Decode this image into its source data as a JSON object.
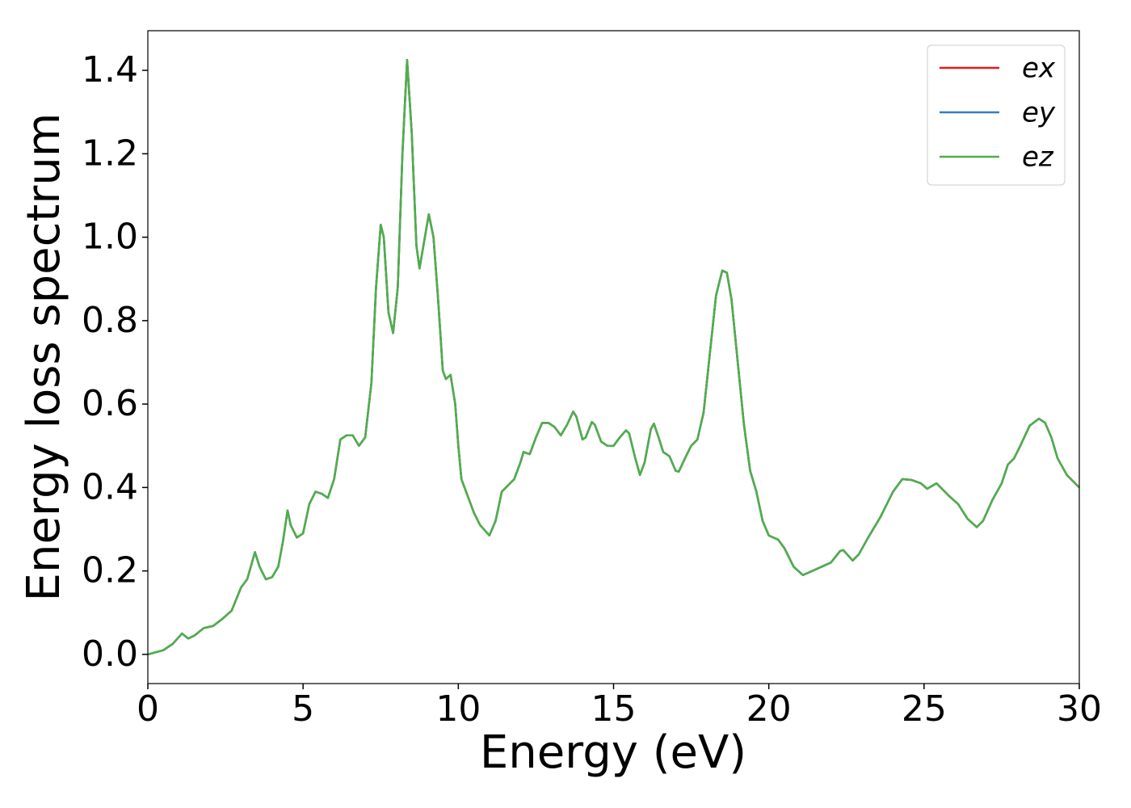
{
  "chart_data": {
    "type": "line",
    "xlabel": "Energy (eV)",
    "ylabel": "Energy loss spectrum",
    "x": [
      0,
      0.5,
      0.8,
      1.1,
      1.3,
      1.5,
      1.8,
      2.1,
      2.4,
      2.7,
      3.0,
      3.2,
      3.45,
      3.6,
      3.8,
      4.0,
      4.2,
      4.35,
      4.5,
      4.6,
      4.8,
      5.0,
      5.2,
      5.4,
      5.6,
      5.8,
      6.0,
      6.2,
      6.4,
      6.6,
      6.8,
      7.0,
      7.2,
      7.35,
      7.5,
      7.6,
      7.75,
      7.9,
      8.05,
      8.2,
      8.35,
      8.5,
      8.65,
      8.75,
      8.9,
      9.05,
      9.2,
      9.35,
      9.5,
      9.6,
      9.75,
      9.9,
      10.0,
      10.1,
      10.3,
      10.5,
      10.7,
      11.0,
      11.2,
      11.4,
      11.6,
      11.8,
      12.0,
      12.1,
      12.3,
      12.5,
      12.7,
      12.9,
      13.1,
      13.3,
      13.5,
      13.7,
      13.8,
      14.0,
      14.1,
      14.3,
      14.4,
      14.6,
      14.8,
      15.0,
      15.2,
      15.4,
      15.5,
      15.7,
      15.85,
      16.0,
      16.2,
      16.3,
      16.45,
      16.6,
      16.8,
      17.0,
      17.1,
      17.3,
      17.5,
      17.7,
      17.9,
      18.1,
      18.3,
      18.5,
      18.65,
      18.8,
      19.0,
      19.2,
      19.4,
      19.6,
      19.8,
      20.0,
      20.3,
      20.5,
      20.8,
      21.1,
      21.4,
      21.7,
      22.0,
      22.3,
      22.4,
      22.7,
      22.9,
      23.2,
      23.6,
      24.0,
      24.3,
      24.6,
      24.9,
      25.1,
      25.4,
      25.6,
      25.8,
      26.1,
      26.4,
      26.7,
      26.9,
      27.2,
      27.5,
      27.7,
      27.9,
      28.1,
      28.4,
      28.7,
      28.9,
      29.1,
      29.3,
      29.6,
      29.8,
      30.0
    ],
    "series": [
      {
        "name": "ex",
        "color": "#e41a1c",
        "values": [
          0.0,
          0.01,
          0.025,
          0.05,
          0.038,
          0.045,
          0.063,
          0.068,
          0.085,
          0.105,
          0.16,
          0.18,
          0.245,
          0.21,
          0.18,
          0.185,
          0.21,
          0.27,
          0.345,
          0.31,
          0.28,
          0.29,
          0.36,
          0.39,
          0.385,
          0.375,
          0.42,
          0.515,
          0.525,
          0.525,
          0.5,
          0.52,
          0.65,
          0.88,
          1.03,
          1.0,
          0.82,
          0.77,
          0.88,
          1.2,
          1.425,
          1.25,
          0.98,
          0.925,
          0.99,
          1.055,
          1.0,
          0.85,
          0.68,
          0.66,
          0.67,
          0.6,
          0.5,
          0.42,
          0.38,
          0.34,
          0.31,
          0.285,
          0.32,
          0.39,
          0.405,
          0.42,
          0.46,
          0.485,
          0.48,
          0.52,
          0.555,
          0.555,
          0.545,
          0.525,
          0.55,
          0.582,
          0.57,
          0.515,
          0.52,
          0.557,
          0.55,
          0.51,
          0.5,
          0.5,
          0.52,
          0.537,
          0.53,
          0.47,
          0.43,
          0.46,
          0.54,
          0.553,
          0.52,
          0.485,
          0.475,
          0.44,
          0.438,
          0.47,
          0.5,
          0.515,
          0.58,
          0.72,
          0.86,
          0.92,
          0.915,
          0.85,
          0.7,
          0.55,
          0.44,
          0.39,
          0.32,
          0.285,
          0.275,
          0.255,
          0.21,
          0.19,
          0.2,
          0.21,
          0.22,
          0.248,
          0.25,
          0.225,
          0.24,
          0.28,
          0.33,
          0.39,
          0.42,
          0.418,
          0.41,
          0.397,
          0.41,
          0.395,
          0.38,
          0.36,
          0.325,
          0.305,
          0.32,
          0.37,
          0.41,
          0.455,
          0.47,
          0.5,
          0.548,
          0.565,
          0.555,
          0.52,
          0.47,
          0.43,
          0.415,
          0.4
        ]
      },
      {
        "name": "ey",
        "color": "#377eb8",
        "values": [
          0.0,
          0.01,
          0.025,
          0.05,
          0.038,
          0.045,
          0.063,
          0.068,
          0.085,
          0.105,
          0.16,
          0.18,
          0.245,
          0.21,
          0.18,
          0.185,
          0.21,
          0.27,
          0.345,
          0.31,
          0.28,
          0.29,
          0.36,
          0.39,
          0.385,
          0.375,
          0.42,
          0.515,
          0.525,
          0.525,
          0.5,
          0.52,
          0.65,
          0.88,
          1.03,
          1.0,
          0.82,
          0.77,
          0.88,
          1.2,
          1.425,
          1.25,
          0.98,
          0.925,
          0.99,
          1.055,
          1.0,
          0.85,
          0.68,
          0.66,
          0.67,
          0.6,
          0.5,
          0.42,
          0.38,
          0.34,
          0.31,
          0.285,
          0.32,
          0.39,
          0.405,
          0.42,
          0.46,
          0.485,
          0.48,
          0.52,
          0.555,
          0.555,
          0.545,
          0.525,
          0.55,
          0.582,
          0.57,
          0.515,
          0.52,
          0.557,
          0.55,
          0.51,
          0.5,
          0.5,
          0.52,
          0.537,
          0.53,
          0.47,
          0.43,
          0.46,
          0.54,
          0.553,
          0.52,
          0.485,
          0.475,
          0.44,
          0.438,
          0.47,
          0.5,
          0.515,
          0.58,
          0.72,
          0.86,
          0.92,
          0.915,
          0.85,
          0.7,
          0.55,
          0.44,
          0.39,
          0.32,
          0.285,
          0.275,
          0.255,
          0.21,
          0.19,
          0.2,
          0.21,
          0.22,
          0.248,
          0.25,
          0.225,
          0.24,
          0.28,
          0.33,
          0.39,
          0.42,
          0.418,
          0.41,
          0.397,
          0.41,
          0.395,
          0.38,
          0.36,
          0.325,
          0.305,
          0.32,
          0.37,
          0.41,
          0.455,
          0.47,
          0.5,
          0.548,
          0.565,
          0.555,
          0.52,
          0.47,
          0.43,
          0.415,
          0.4
        ]
      },
      {
        "name": "ez",
        "color": "#4daf4a",
        "values": [
          0.0,
          0.01,
          0.025,
          0.05,
          0.038,
          0.045,
          0.063,
          0.068,
          0.085,
          0.105,
          0.16,
          0.18,
          0.245,
          0.21,
          0.18,
          0.185,
          0.21,
          0.27,
          0.345,
          0.31,
          0.28,
          0.29,
          0.36,
          0.39,
          0.385,
          0.375,
          0.42,
          0.515,
          0.525,
          0.525,
          0.5,
          0.52,
          0.65,
          0.88,
          1.03,
          1.0,
          0.82,
          0.77,
          0.88,
          1.2,
          1.425,
          1.25,
          0.98,
          0.925,
          0.99,
          1.055,
          1.0,
          0.85,
          0.68,
          0.66,
          0.67,
          0.6,
          0.5,
          0.42,
          0.38,
          0.34,
          0.31,
          0.285,
          0.32,
          0.39,
          0.405,
          0.42,
          0.46,
          0.485,
          0.48,
          0.52,
          0.555,
          0.555,
          0.545,
          0.525,
          0.55,
          0.582,
          0.57,
          0.515,
          0.52,
          0.557,
          0.55,
          0.51,
          0.5,
          0.5,
          0.52,
          0.537,
          0.53,
          0.47,
          0.43,
          0.46,
          0.54,
          0.553,
          0.52,
          0.485,
          0.475,
          0.44,
          0.438,
          0.47,
          0.5,
          0.515,
          0.58,
          0.72,
          0.86,
          0.92,
          0.915,
          0.85,
          0.7,
          0.55,
          0.44,
          0.39,
          0.32,
          0.285,
          0.275,
          0.255,
          0.21,
          0.19,
          0.2,
          0.21,
          0.22,
          0.248,
          0.25,
          0.225,
          0.24,
          0.28,
          0.33,
          0.39,
          0.42,
          0.418,
          0.41,
          0.397,
          0.41,
          0.395,
          0.38,
          0.36,
          0.325,
          0.305,
          0.32,
          0.37,
          0.41,
          0.455,
          0.47,
          0.5,
          0.548,
          0.565,
          0.555,
          0.52,
          0.47,
          0.43,
          0.415,
          0.4
        ]
      }
    ],
    "xlim": [
      0,
      30
    ],
    "xticks": [
      0,
      5,
      10,
      15,
      20,
      25,
      30
    ],
    "ylim": [
      -0.07,
      1.495
    ],
    "yticks": [
      {
        "value": 0,
        "label": "0.0"
      },
      {
        "value": 0.2,
        "label": "0.2"
      },
      {
        "value": 0.4,
        "label": "0.4"
      },
      {
        "value": 0.6,
        "label": "0.6"
      },
      {
        "value": 0.8,
        "label": "0.8"
      },
      {
        "value": 1,
        "label": "1.0"
      },
      {
        "value": 1.2,
        "label": "1.2"
      },
      {
        "value": 1.4,
        "label": "1.4"
      }
    ],
    "grid": false,
    "legend": "upper right"
  }
}
